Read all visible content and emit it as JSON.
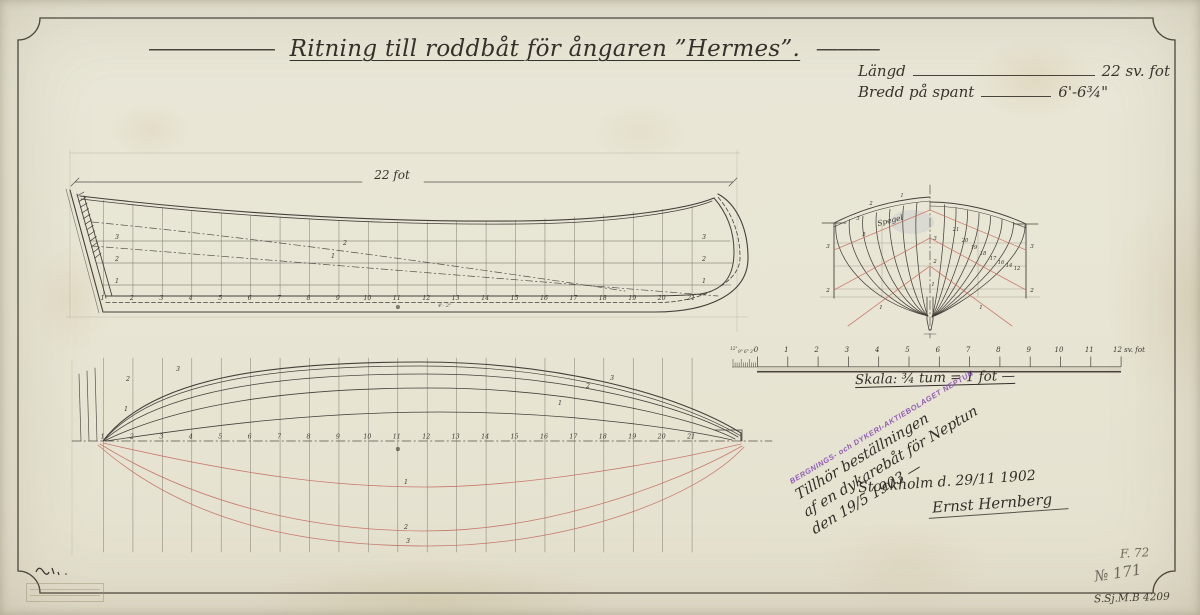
{
  "page": {
    "title": "Ritning till roddbåt för ångaren ”Hermes”.",
    "title_dash_left": "——————",
    "title_dash_right": "———",
    "specs": {
      "length_label": "Längd",
      "length_value": "22 sv. fot",
      "beam_label": "Bredd på spant",
      "beam_value": "6'-6¾\""
    }
  },
  "elevation": {
    "dim_label": "22 fot",
    "stations": [
      "1",
      "2",
      "3",
      "4",
      "5",
      "6",
      "7",
      "8",
      "9",
      "10",
      "11",
      "12",
      "13",
      "14",
      "15",
      "16",
      "17",
      "18",
      "19",
      "20",
      "21"
    ],
    "waterline_labels": [
      "1",
      "2",
      "3"
    ],
    "diagonal_label_upper": "2",
    "diagonal_label_lower": "1",
    "midship_mark": "⊗",
    "spacing_note": "4'- 2\""
  },
  "plan": {
    "waterline_labels_left": [
      "3",
      "2",
      "1"
    ],
    "waterline_labels_right": [
      "3",
      "2",
      "1"
    ],
    "diagonal_labels": [
      "1",
      "2",
      "3"
    ],
    "midship_mark": "⊗"
  },
  "body_plan": {
    "transom_label": "Spegel",
    "center_waterline_labels": [
      "3",
      "2",
      "1"
    ],
    "edge_labels_left": [
      "3",
      "2"
    ],
    "edge_labels_right": [
      "3",
      "2"
    ],
    "lower_diagonal_labels": [
      "1",
      "1"
    ],
    "left_section_labels": [
      "1",
      "2",
      "3",
      "5"
    ],
    "right_section_labels": [
      "21",
      "20",
      "19",
      "18",
      "17",
      "16",
      "14",
      "12"
    ]
  },
  "ruler": {
    "feet_labels": [
      "0",
      "1",
      "2",
      "3",
      "4",
      "5",
      "6",
      "7",
      "8",
      "9",
      "10",
      "11"
    ],
    "end_label": "12 sv. fot",
    "inch_labels": [
      "12\"",
      "9\"",
      "6\"",
      "3\""
    ],
    "scale_caption": "Skala: ¾ tum = 1 fot —"
  },
  "stamp": {
    "text": "BERGNINGS- och DYKERI-AKTIEBOLAGET NEPTUN"
  },
  "annotations": {
    "dedication_line1": "Tillhör beställningen",
    "dedication_line2": "af en dykarebåt för Neptun",
    "dedication_line3": "den 19/5 1903 —",
    "place_date": "Stockholm d. 29/11 1902",
    "signature": "Ernst Hernberg"
  },
  "archive": {
    "pencil_code": "F. 72",
    "pencil_number": "№ 171",
    "ink_number": "S.Sj.M.B 4209"
  },
  "colors": {
    "paper": "#e9e6d6",
    "ink": "#3a352d",
    "drawing": "#504b42",
    "grid": "#9b958a",
    "red": "#c2685c",
    "purple": "#8448b4",
    "pencil": "#6f6a60"
  }
}
